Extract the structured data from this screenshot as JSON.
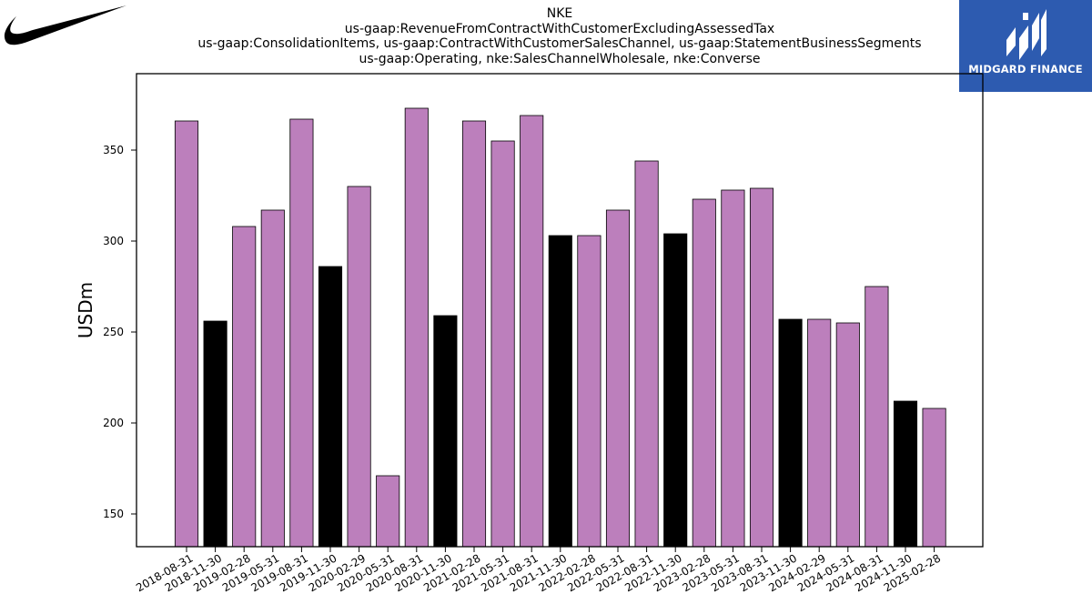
{
  "title": {
    "lines": [
      "NKE",
      "us-gaap:RevenueFromContractWithCustomerExcludingAssessedTax",
      "us-gaap:ConsolidationItems, us-gaap:ContractWithCustomerSalesChannel, us-gaap:StatementBusinessSegments",
      "us-gaap:Operating, nke:SalesChannelWholesale, nke:Converse"
    ]
  },
  "badge": {
    "text": "MIDGARD FINANCE"
  },
  "icons": {
    "brand": "swoosh-logo-icon",
    "badge": "midgard-finance-logo-icon"
  },
  "colors": {
    "primary_bar": "#bc7fbc",
    "highlight_bar": "#000000",
    "badge_bg": "#2d5bb0"
  },
  "chart_data": {
    "type": "bar",
    "ylabel": "USDm",
    "xlabel": "",
    "ylim": [
      132,
      392
    ],
    "yticks": [
      150,
      200,
      250,
      300,
      350
    ],
    "grid": false,
    "categories": [
      "2018-08-31",
      "2018-11-30",
      "2019-02-28",
      "2019-05-31",
      "2019-08-31",
      "2019-11-30",
      "2020-02-29",
      "2020-05-31",
      "2020-08-31",
      "2020-11-30",
      "2021-02-28",
      "2021-05-31",
      "2021-08-31",
      "2021-11-30",
      "2022-02-28",
      "2022-05-31",
      "2022-08-31",
      "2022-11-30",
      "2023-02-28",
      "2023-05-31",
      "2023-08-31",
      "2023-11-30",
      "2024-02-29",
      "2024-05-31",
      "2024-08-31",
      "2024-11-30",
      "2025-02-28"
    ],
    "values": [
      366,
      256,
      308,
      317,
      367,
      286,
      330,
      171,
      373,
      259,
      366,
      355,
      369,
      303,
      303,
      317,
      344,
      304,
      323,
      328,
      329,
      257,
      257,
      255,
      275,
      212,
      208
    ],
    "highlighted": [
      false,
      true,
      false,
      false,
      false,
      true,
      false,
      false,
      false,
      true,
      false,
      false,
      false,
      true,
      false,
      false,
      false,
      true,
      false,
      false,
      false,
      true,
      false,
      false,
      false,
      true,
      false
    ]
  }
}
